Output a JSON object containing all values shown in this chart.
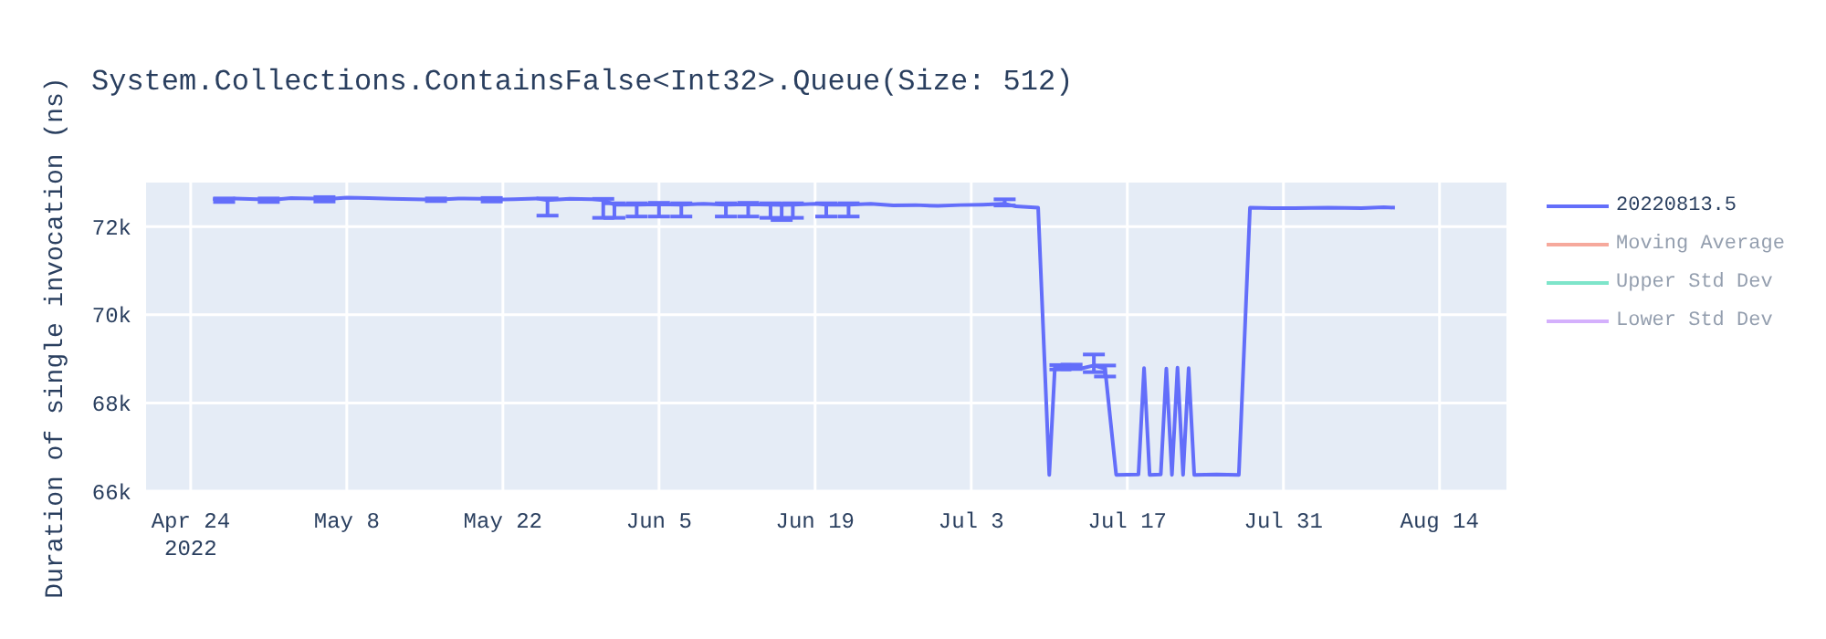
{
  "chart_data": {
    "type": "line",
    "title": "System.Collections.ContainsFalse<Int32>.Queue(Size: 512)",
    "ylabel": "Duration of single invocation (ns)",
    "x": [
      "2022-04-26",
      "2022-04-27",
      "2022-04-28",
      "2022-04-30",
      "2022-05-01",
      "2022-05-03",
      "2022-05-05",
      "2022-05-06",
      "2022-05-08",
      "2022-05-10",
      "2022-05-12",
      "2022-05-14",
      "2022-05-16",
      "2022-05-18",
      "2022-05-20",
      "2022-05-21",
      "2022-05-23",
      "2022-05-25",
      "2022-05-26",
      "2022-05-28",
      "2022-05-30",
      "2022-05-31",
      "2022-06-01",
      "2022-06-03",
      "2022-06-05",
      "2022-06-07",
      "2022-06-09",
      "2022-06-11",
      "2022-06-13",
      "2022-06-15",
      "2022-06-16",
      "2022-06-17",
      "2022-06-19",
      "2022-06-20",
      "2022-06-22",
      "2022-06-24",
      "2022-06-26",
      "2022-06-28",
      "2022-06-30",
      "2022-07-02",
      "2022-07-04",
      "2022-07-06",
      "2022-07-07",
      "2022-07-09",
      "2022-07-10",
      "2022-07-10T12:00",
      "2022-07-11",
      "2022-07-12",
      "2022-07-13",
      "2022-07-14",
      "2022-07-15",
      "2022-07-16",
      "2022-07-18",
      "2022-07-18T12:00",
      "2022-07-19",
      "2022-07-20",
      "2022-07-20T12:00",
      "2022-07-21",
      "2022-07-21T12:00",
      "2022-07-22",
      "2022-07-22T12:00",
      "2022-07-23",
      "2022-07-25",
      "2022-07-27",
      "2022-07-28",
      "2022-07-30",
      "2022-08-01",
      "2022-08-04",
      "2022-08-07",
      "2022-08-09",
      "2022-08-10"
    ],
    "series": [
      {
        "name": "20220813.5",
        "color": "#636efa",
        "values": [
          72630,
          72600,
          72640,
          72620,
          72600,
          72650,
          72640,
          72620,
          72660,
          72650,
          72630,
          72620,
          72610,
          72640,
          72630,
          72610,
          72620,
          72640,
          72600,
          72630,
          72620,
          72600,
          72500,
          72500,
          72510,
          72500,
          72520,
          72500,
          72510,
          72500,
          72490,
          72500,
          72520,
          72500,
          72500,
          72520,
          72480,
          72490,
          72470,
          72490,
          72500,
          72520,
          72460,
          72430,
          66370,
          68800,
          68810,
          68820,
          68790,
          68850,
          68780,
          66370,
          66380,
          68790,
          66370,
          66380,
          68780,
          66370,
          68800,
          66370,
          68790,
          66370,
          66380,
          66370,
          72430,
          72420,
          72420,
          72430,
          72420,
          72440,
          72430
        ],
        "errors": [
          null,
          [
            72560,
            72640
          ],
          null,
          null,
          [
            72560,
            72640
          ],
          null,
          null,
          [
            72570,
            72670
          ],
          null,
          null,
          null,
          null,
          [
            72580,
            72640
          ],
          null,
          null,
          [
            72570,
            72650
          ],
          null,
          null,
          [
            72250,
            72640
          ],
          null,
          null,
          [
            72200,
            72630
          ],
          [
            72200,
            72530
          ],
          [
            72230,
            72530
          ],
          [
            72230,
            72540
          ],
          [
            72230,
            72530
          ],
          null,
          [
            72230,
            72530
          ],
          [
            72230,
            72540
          ],
          [
            72200,
            72530
          ],
          [
            72150,
            72520
          ],
          [
            72200,
            72530
          ],
          null,
          [
            72230,
            72530
          ],
          [
            72230,
            72530
          ],
          null,
          null,
          null,
          null,
          null,
          null,
          [
            72480,
            72620
          ],
          null,
          null,
          null,
          null,
          [
            68760,
            68860
          ],
          [
            68770,
            68870
          ],
          null,
          [
            68700,
            69100
          ],
          [
            68600,
            68850
          ],
          null,
          null,
          null,
          null,
          null,
          null,
          null,
          null,
          null,
          null,
          null,
          null,
          null,
          null,
          null,
          null,
          null,
          null,
          null,
          null
        ]
      },
      {
        "name": "Moving Average",
        "color": "#ef553b",
        "values": [
          null,
          null,
          null,
          null,
          null,
          null,
          null,
          null,
          null,
          null,
          null,
          null,
          null,
          null,
          null,
          null,
          null,
          null,
          null,
          null,
          null,
          null,
          null,
          null,
          null,
          null,
          null,
          null,
          null,
          null,
          null,
          null,
          null,
          null,
          null,
          null,
          null,
          null,
          null,
          null,
          null,
          null,
          null,
          null,
          null,
          null,
          null,
          null,
          null,
          null,
          null,
          null,
          null,
          null,
          null,
          null,
          null,
          null,
          null,
          null,
          null,
          null,
          null,
          null,
          null,
          null,
          null,
          null,
          null,
          null,
          null
        ]
      },
      {
        "name": "Upper Std Dev",
        "color": "#00cc96",
        "values": [
          null,
          null,
          null,
          null,
          null,
          null,
          null,
          null,
          null,
          null,
          null,
          null,
          null,
          null,
          null,
          null,
          null,
          null,
          null,
          null,
          null,
          null,
          null,
          null,
          null,
          null,
          null,
          null,
          null,
          null,
          null,
          null,
          null,
          null,
          null,
          null,
          null,
          null,
          null,
          null,
          null,
          null,
          null,
          null,
          null,
          null,
          null,
          null,
          null,
          null,
          null,
          null,
          null,
          null,
          null,
          null,
          null,
          null,
          null,
          null,
          null,
          null,
          null,
          null,
          null,
          null,
          null,
          null,
          null,
          null,
          null
        ]
      },
      {
        "name": "Lower Std Dev",
        "color": "#ab63fa",
        "values": [
          null,
          null,
          null,
          null,
          null,
          null,
          null,
          null,
          null,
          null,
          null,
          null,
          null,
          null,
          null,
          null,
          null,
          null,
          null,
          null,
          null,
          null,
          null,
          null,
          null,
          null,
          null,
          null,
          null,
          null,
          null,
          null,
          null,
          null,
          null,
          null,
          null,
          null,
          null,
          null,
          null,
          null,
          null,
          null,
          null,
          null,
          null,
          null,
          null,
          null,
          null,
          null,
          null,
          null,
          null,
          null,
          null,
          null,
          null,
          null,
          null,
          null,
          null,
          null,
          null,
          null,
          null,
          null,
          null,
          null,
          null
        ]
      }
    ],
    "xlim": [
      "2022-04-20",
      "2022-08-20"
    ],
    "xticks": [
      {
        "value": "2022-04-24",
        "label": "Apr 24\n2022"
      },
      {
        "value": "2022-05-08",
        "label": "May 8"
      },
      {
        "value": "2022-05-22",
        "label": "May 22"
      },
      {
        "value": "2022-06-05",
        "label": "Jun 5"
      },
      {
        "value": "2022-06-19",
        "label": "Jun 19"
      },
      {
        "value": "2022-07-03",
        "label": "Jul 3"
      },
      {
        "value": "2022-07-17",
        "label": "Jul 17"
      },
      {
        "value": "2022-07-31",
        "label": "Jul 31"
      },
      {
        "value": "2022-08-14",
        "label": "Aug 14"
      }
    ],
    "ylim": [
      66000,
      73000
    ],
    "yticks": [
      {
        "value": 66000,
        "label": "66k"
      },
      {
        "value": 68000,
        "label": "68k"
      },
      {
        "value": 70000,
        "label": "70k"
      },
      {
        "value": 72000,
        "label": "72k"
      }
    ],
    "grid": true,
    "legend": "top right",
    "marker": "none",
    "line_style": "solid"
  }
}
